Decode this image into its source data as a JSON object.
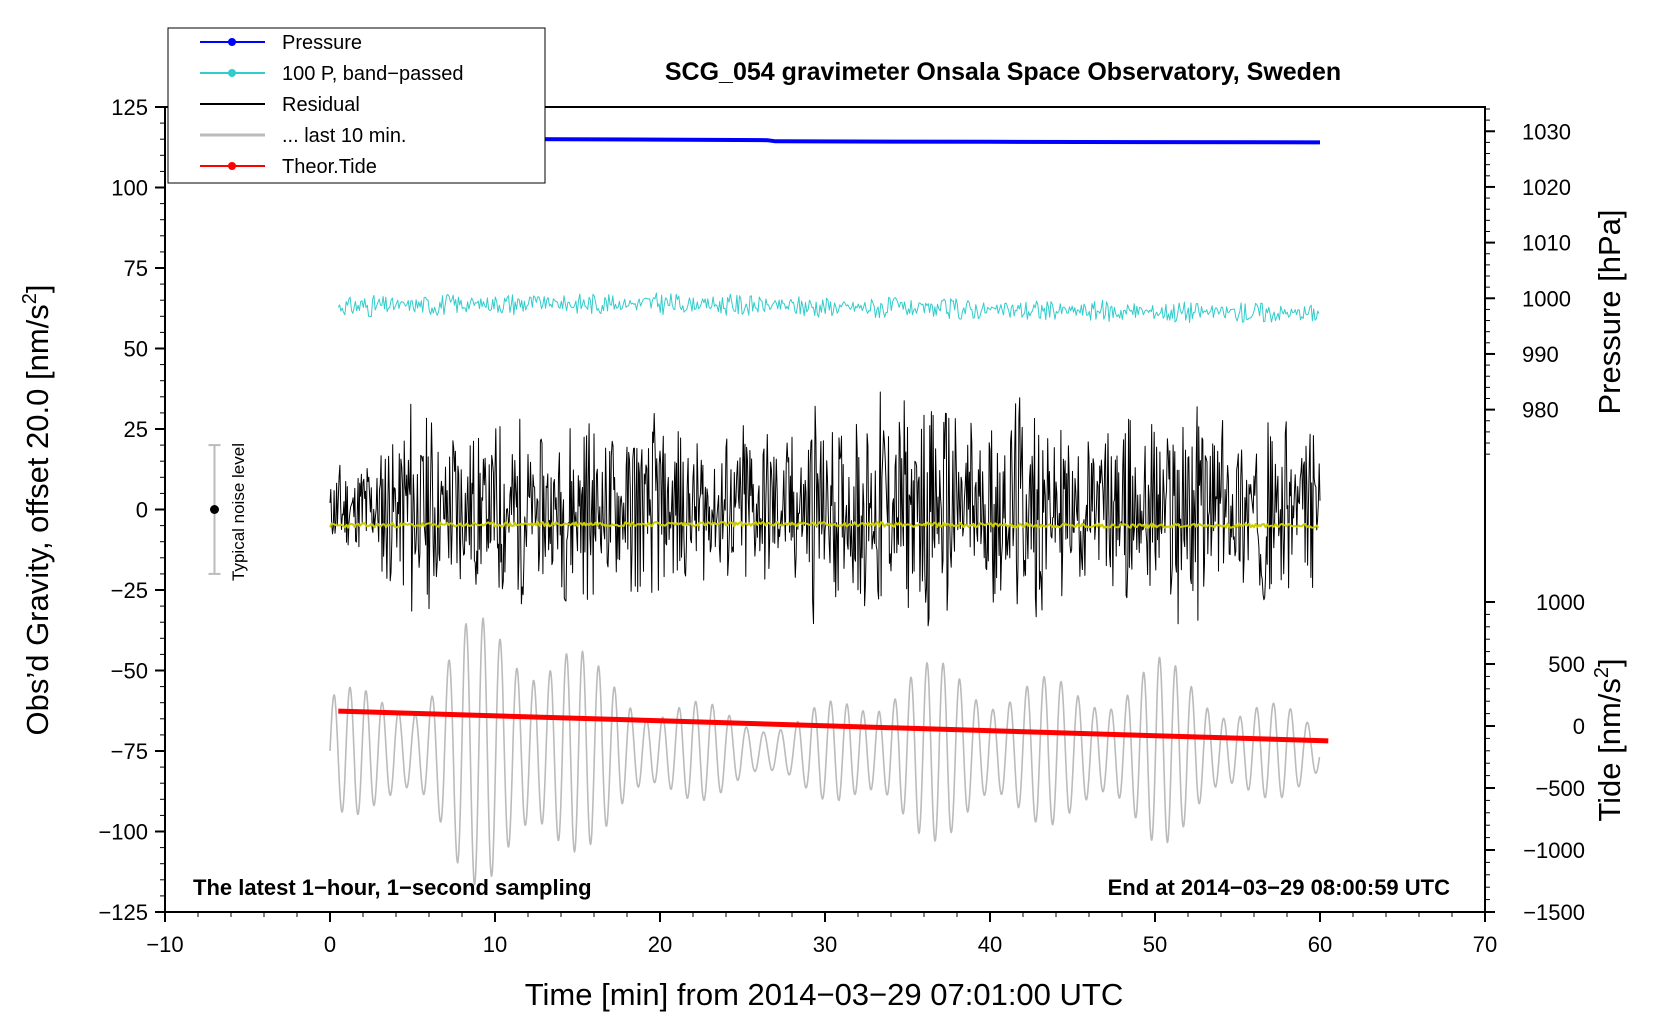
{
  "chart_data": {
    "type": "line",
    "title": "SCG_054 gravimeter Onsala Space Observatory, Sweden",
    "xlabel": "Time [min] from 2014−03−29 07:01:00 UTC",
    "ylabel_main": "Obs’d Gravity, offset 20.0 [nm/s",
    "ylabel_main_sup": "2",
    "ylabel_main_end": "]",
    "ylabel_pressure": "Pressure [hPa]",
    "ylabel_tide": "Tide [nm/s",
    "ylabel_tide_sup": "2",
    "ylabel_tide_end": "]",
    "xlim": [
      -10,
      70
    ],
    "ylim": [
      -125,
      125
    ],
    "pressure_lim": [
      967,
      1034
    ],
    "tide_lim": [
      -1500,
      1500
    ],
    "x_ticks": [
      -10,
      0,
      10,
      20,
      30,
      40,
      50,
      60,
      70
    ],
    "x_tick_labels": [
      "−10",
      "0",
      "10",
      "20",
      "30",
      "40",
      "50",
      "60",
      "70"
    ],
    "y_ticks": [
      -125,
      -100,
      -75,
      -50,
      -25,
      0,
      25,
      50,
      75,
      100,
      125
    ],
    "y_tick_labels": [
      "−125",
      "−100",
      "−75",
      "−50",
      "−25",
      "0",
      "25",
      "50",
      "75",
      "100",
      "125"
    ],
    "pressure_ticks": [
      980,
      990,
      1000,
      1010,
      1020,
      1030
    ],
    "pressure_tick_labels": [
      "980",
      "990",
      "1000",
      "1010",
      "1020",
      "1030"
    ],
    "tide_ticks": [
      -1500,
      -1000,
      -500,
      0,
      500,
      1000
    ],
    "tide_tick_labels": [
      "−1500",
      "−1000",
      "−500",
      "0",
      "500",
      "1000"
    ],
    "note_left": "The latest 1−hour, 1−second sampling",
    "note_right": "End at 2014−03−29 08:00:59 UTC",
    "noise_label": "Typical noise level",
    "noise_bar": {
      "x": -7,
      "center": 0,
      "half_range": 20
    },
    "legend": [
      {
        "label": "Pressure",
        "color": "#0000ff",
        "marker": true
      },
      {
        "label": "100 P, band−passed",
        "color": "#33cccc",
        "marker": true
      },
      {
        "label": "Residual",
        "color": "#000000",
        "marker": false
      },
      {
        "label": "... last 10 min.",
        "color": "#bbbbbb",
        "marker": false
      },
      {
        "label": "Theor.Tide",
        "color": "#ff0000",
        "marker": true
      }
    ],
    "series": [
      {
        "name": "Pressure",
        "axis": "pressure",
        "color": "#0000ff",
        "x": [
          12,
          20,
          26.5,
          27,
          40,
          60
        ],
        "y": [
          1028.6,
          1028.5,
          1028.4,
          1028.2,
          1028.1,
          1028.0
        ]
      },
      {
        "name": "100 P, band-passed",
        "axis": "main",
        "color": "#33cccc",
        "x": [
          0.5,
          10,
          20,
          30,
          40,
          50,
          60
        ],
        "y": [
          63,
          64,
          64,
          63,
          62,
          61.5,
          61
        ],
        "noise_amplitude": 2.5
      },
      {
        "name": "Residual",
        "axis": "main",
        "color": "#000000",
        "x": [
          0,
          60
        ],
        "y": [
          0,
          0
        ],
        "envelope_x": [
          0,
          2,
          4,
          5,
          7,
          8,
          9,
          11,
          13,
          15,
          17,
          19,
          21,
          23,
          25,
          28,
          29.5,
          31,
          33,
          35,
          37,
          39,
          41,
          42.5,
          44,
          46,
          48,
          50,
          51.5,
          53,
          55,
          57,
          60
        ],
        "envelope_y": [
          15,
          16,
          28,
          40,
          25,
          33,
          24,
          33,
          22,
          34,
          24,
          33,
          28,
          22,
          30,
          24,
          38,
          26,
          38,
          34,
          38,
          30,
          34,
          38,
          28,
          24,
          30,
          28,
          41,
          32,
          26,
          30,
          24
        ]
      },
      {
        "name": "Residual smoothed",
        "axis": "main",
        "color": "#cccc00",
        "x": [
          0,
          15,
          30,
          45,
          60
        ],
        "y": [
          -5,
          -4.5,
          -4.5,
          -5,
          -5
        ],
        "noise_amplitude": 0.7
      },
      {
        "name": "... last 10 min.",
        "axis": "main",
        "color": "#bbbbbb",
        "x": [
          0,
          60
        ],
        "baseline": -75,
        "envelope_x": [
          0,
          3,
          5,
          8,
          10,
          12,
          14,
          16,
          20,
          24,
          28,
          31,
          33,
          35,
          38,
          40,
          45,
          50,
          52,
          55,
          58,
          60
        ],
        "envelope_y": [
          22,
          18,
          22,
          40,
          44,
          45,
          38,
          28,
          18,
          14,
          10,
          18,
          24,
          28,
          28,
          26,
          22,
          30,
          26,
          18,
          14,
          10
        ],
        "cycle_min": 1.0
      },
      {
        "name": "Theor.Tide",
        "axis": "tide",
        "color": "#ff0000",
        "x": [
          0.5,
          60.5
        ],
        "y": [
          120,
          -120
        ]
      }
    ]
  }
}
